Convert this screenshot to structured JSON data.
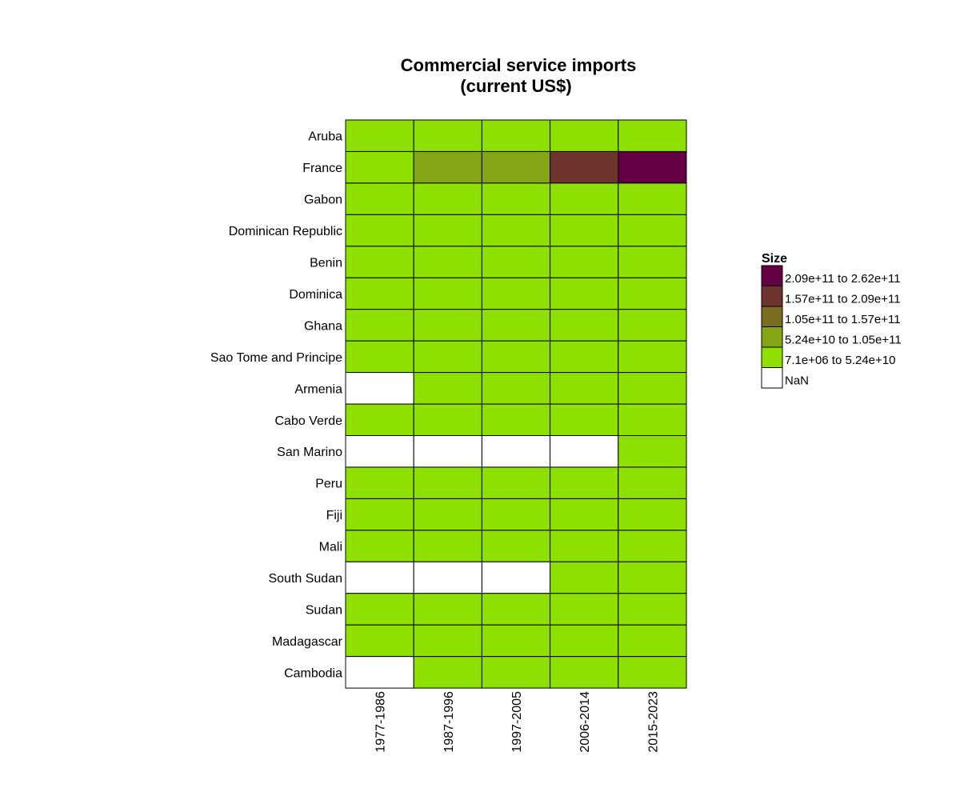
{
  "chart_data": {
    "type": "heatmap",
    "title_lines": [
      "Commercial service imports",
      "(current US$)"
    ],
    "x_categories": [
      "1977-1986",
      "1987-1996",
      "1997-2005",
      "2006-2014",
      "2015-2023"
    ],
    "y_categories": [
      "Aruba",
      "France",
      "Gabon",
      "Dominican Republic",
      "Benin",
      "Dominica",
      "Ghana",
      "Sao Tome and Principe",
      "Armenia",
      "Cabo Verde",
      "San Marino",
      "Peru",
      "Fiji",
      "Mali",
      "South Sudan",
      "Sudan",
      "Madagascar",
      "Cambodia"
    ],
    "bin_grid": [
      [
        0,
        0,
        0,
        0,
        0
      ],
      [
        0,
        1,
        1,
        3,
        4
      ],
      [
        0,
        0,
        0,
        0,
        0
      ],
      [
        0,
        0,
        0,
        0,
        0
      ],
      [
        0,
        0,
        0,
        0,
        0
      ],
      [
        0,
        0,
        0,
        0,
        0
      ],
      [
        0,
        0,
        0,
        0,
        0
      ],
      [
        0,
        0,
        0,
        0,
        0
      ],
      [
        null,
        0,
        0,
        0,
        0
      ],
      [
        0,
        0,
        0,
        0,
        0
      ],
      [
        null,
        null,
        null,
        null,
        0
      ],
      [
        0,
        0,
        0,
        0,
        0
      ],
      [
        0,
        0,
        0,
        0,
        0
      ],
      [
        0,
        0,
        0,
        0,
        0
      ],
      [
        null,
        null,
        null,
        0,
        0
      ],
      [
        0,
        0,
        0,
        0,
        0
      ],
      [
        0,
        0,
        0,
        0,
        0
      ],
      [
        null,
        0,
        0,
        0,
        0
      ]
    ],
    "legend": {
      "title": "Size",
      "position": "right",
      "bins": [
        {
          "label": "7.1e+06 to 5.24e+10",
          "color": "#8ee000"
        },
        {
          "label": "5.24e+10 to 1.05e+11",
          "color": "#84a516"
        },
        {
          "label": "1.05e+11 to 1.57e+11",
          "color": "#7a6e22"
        },
        {
          "label": "1.57e+11 to 2.09e+11",
          "color": "#6e3530"
        },
        {
          "label": "2.09e+11 to 2.62e+11",
          "color": "#660044"
        }
      ],
      "nan": {
        "label": "NaN",
        "color": "#ffffff"
      }
    }
  }
}
